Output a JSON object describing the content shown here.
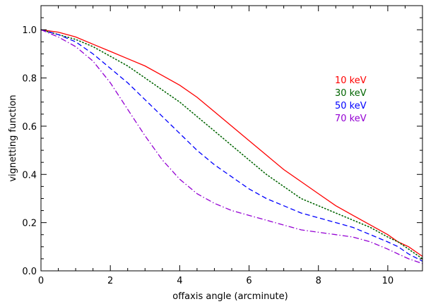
{
  "chart_data": {
    "type": "line",
    "title": "",
    "xlabel": "offaxis angle (arcminute)",
    "ylabel": "vignetting function",
    "xlim": [
      0,
      11
    ],
    "ylim": [
      0,
      1.1
    ],
    "x_ticks": [
      "0",
      "2",
      "4",
      "6",
      "8",
      "10"
    ],
    "y_ticks": [
      "0.0",
      "0.2",
      "0.4",
      "0.6",
      "0.8",
      "1.0"
    ],
    "grid": false,
    "legend_position": "top-right",
    "series": [
      {
        "name": "10 keV",
        "color": "#ff0000",
        "style": "solid",
        "x": [
          0,
          0.5,
          1,
          1.5,
          2,
          2.5,
          3,
          3.5,
          4,
          4.5,
          5,
          5.5,
          6,
          6.5,
          7,
          7.5,
          8,
          8.5,
          9,
          9.5,
          10,
          10.3,
          10.6,
          11
        ],
        "y": [
          1.0,
          0.99,
          0.97,
          0.94,
          0.91,
          0.88,
          0.85,
          0.81,
          0.77,
          0.72,
          0.66,
          0.6,
          0.54,
          0.48,
          0.42,
          0.37,
          0.32,
          0.27,
          0.23,
          0.19,
          0.15,
          0.12,
          0.1,
          0.06
        ]
      },
      {
        "name": "30 keV",
        "color": "#006400",
        "style": "dotted",
        "x": [
          0,
          0.5,
          1,
          1.5,
          2,
          2.5,
          3,
          3.5,
          4,
          4.5,
          5,
          5.5,
          6,
          6.5,
          7,
          7.5,
          8,
          8.5,
          9,
          9.5,
          10,
          10.3,
          10.6,
          11
        ],
        "y": [
          1.0,
          0.98,
          0.96,
          0.93,
          0.89,
          0.85,
          0.8,
          0.75,
          0.7,
          0.64,
          0.58,
          0.52,
          0.46,
          0.4,
          0.35,
          0.3,
          0.27,
          0.24,
          0.21,
          0.18,
          0.14,
          0.12,
          0.09,
          0.05
        ]
      },
      {
        "name": "50 keV",
        "color": "#0000ff",
        "style": "dashed",
        "x": [
          0,
          0.5,
          1,
          1.5,
          2,
          2.5,
          3,
          3.5,
          4,
          4.5,
          5,
          5.5,
          6,
          6.5,
          7,
          7.5,
          8,
          8.5,
          9,
          9.5,
          10,
          10.3,
          10.6,
          11
        ],
        "y": [
          1.0,
          0.98,
          0.95,
          0.9,
          0.84,
          0.78,
          0.71,
          0.64,
          0.57,
          0.5,
          0.44,
          0.39,
          0.34,
          0.3,
          0.27,
          0.24,
          0.22,
          0.2,
          0.18,
          0.15,
          0.12,
          0.1,
          0.07,
          0.04
        ]
      },
      {
        "name": "70 keV",
        "color": "#9400d3",
        "style": "dashdot",
        "x": [
          0,
          0.5,
          1,
          1.5,
          2,
          2.5,
          3,
          3.5,
          4,
          4.5,
          5,
          5.5,
          6,
          6.5,
          7,
          7.5,
          8,
          8.5,
          9,
          9.5,
          10,
          10.3,
          10.6,
          11
        ],
        "y": [
          1.0,
          0.97,
          0.93,
          0.87,
          0.78,
          0.67,
          0.56,
          0.46,
          0.38,
          0.32,
          0.28,
          0.25,
          0.23,
          0.21,
          0.19,
          0.17,
          0.16,
          0.15,
          0.14,
          0.12,
          0.09,
          0.07,
          0.05,
          0.03
        ]
      }
    ]
  }
}
